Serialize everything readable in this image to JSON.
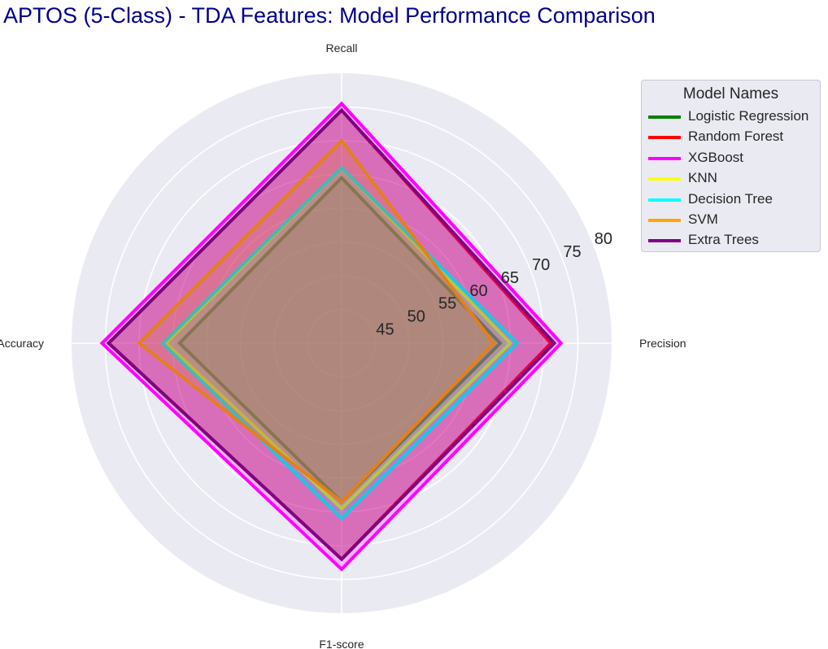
{
  "chart_data": {
    "type": "radar",
    "title": "APTOS (5-Class) - TDA Features: Model Performance Comparison",
    "axes": [
      "Precision",
      "Recall",
      "Accuracy",
      "F1-score"
    ],
    "radial_range": [
      40,
      80
    ],
    "radial_ticks": [
      "45",
      "50",
      "55",
      "60",
      "65",
      "70",
      "75",
      "80"
    ],
    "legend": {
      "title": "Model Names",
      "placement": "outside-right"
    },
    "series": [
      {
        "name": "Logistic Regression",
        "color": "#008000",
        "values": [
          63.5,
          64.5,
          64.0,
          63.5
        ]
      },
      {
        "name": "Random Forest",
        "color": "#ff0000",
        "values": [
          71.0,
          74.5,
          74.5,
          72.0
        ]
      },
      {
        "name": "XGBoost",
        "color": "#ff00ff",
        "values": [
          72.5,
          75.5,
          75.5,
          73.5
        ]
      },
      {
        "name": "KNN",
        "color": "#ffff00",
        "values": [
          65.0,
          66.0,
          66.0,
          64.5
        ]
      },
      {
        "name": "Decision Tree",
        "color": "#00ffff",
        "values": [
          66.0,
          66.0,
          66.5,
          66.0
        ]
      },
      {
        "name": "SVM",
        "color": "#ffa500",
        "values": [
          62.5,
          70.0,
          70.0,
          63.5
        ]
      },
      {
        "name": "Extra Trees",
        "color": "#800080",
        "values": [
          71.5,
          74.5,
          74.5,
          72.0
        ]
      }
    ]
  }
}
